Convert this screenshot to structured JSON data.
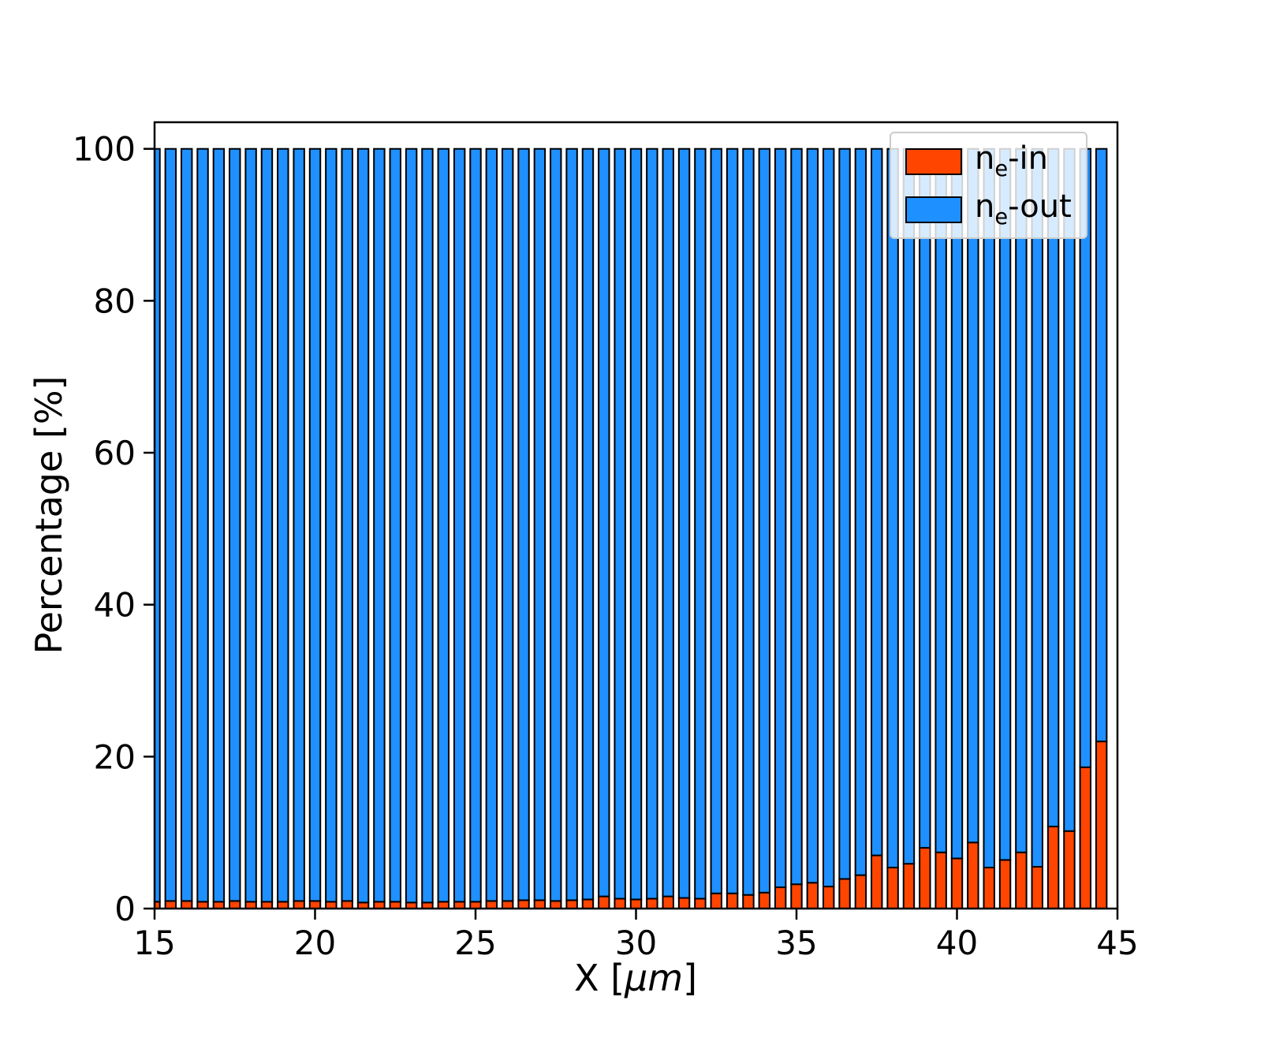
{
  "figure": {
    "background": "#ffffff"
  },
  "axis": {
    "ylabel": "Percentage  [%]",
    "xlabel_prefix": "X  [",
    "xlabel_italic": "μm",
    "xlabel_suffix": "]"
  },
  "legend": {
    "items": [
      {
        "key": "ne_in",
        "color": "#FF4500",
        "prefix": "n",
        "sub": "e",
        "suffix": "-in"
      },
      {
        "key": "ne_out",
        "color": "#1E90FF",
        "prefix": "n",
        "sub": "e",
        "suffix": "-out"
      }
    ]
  },
  "chart_data": {
    "type": "bar",
    "stacked": true,
    "title": "",
    "xlabel": "X [μm]",
    "ylabel": "Percentage [%]",
    "xlim": [
      15,
      45
    ],
    "ylim": [
      0,
      103.5
    ],
    "xticks": [
      15,
      20,
      25,
      30,
      35,
      40,
      45
    ],
    "yticks": [
      0,
      20,
      40,
      60,
      80,
      100
    ],
    "grid": false,
    "legend_position": "upper right",
    "bar_width": 0.33,
    "edge_color": "#000000",
    "x": [
      15.0,
      15.5,
      16.0,
      16.5,
      17.0,
      17.5,
      18.0,
      18.5,
      19.0,
      19.5,
      20.0,
      20.5,
      21.0,
      21.5,
      22.0,
      22.5,
      23.0,
      23.5,
      24.0,
      24.5,
      25.0,
      25.5,
      26.0,
      26.5,
      27.0,
      27.5,
      28.0,
      28.5,
      29.0,
      29.5,
      30.0,
      30.5,
      31.0,
      31.5,
      32.0,
      32.5,
      33.0,
      33.5,
      34.0,
      34.5,
      35.0,
      35.5,
      36.0,
      36.5,
      37.0,
      37.5,
      38.0,
      38.5,
      39.0,
      39.5,
      40.0,
      40.5,
      41.0,
      41.5,
      42.0,
      42.5,
      43.0,
      43.5,
      44.0,
      44.5
    ],
    "series": [
      {
        "name": "n_e-in",
        "color": "#FF4500",
        "values": [
          0.9,
          1.0,
          1.0,
          0.9,
          0.9,
          1.0,
          0.9,
          0.9,
          0.9,
          1.0,
          1.0,
          0.9,
          1.0,
          0.8,
          0.9,
          0.9,
          0.8,
          0.8,
          0.9,
          0.9,
          0.9,
          1.0,
          1.0,
          1.1,
          1.1,
          1.0,
          1.1,
          1.2,
          1.6,
          1.3,
          1.2,
          1.3,
          1.6,
          1.4,
          1.3,
          2.0,
          2.0,
          1.8,
          2.1,
          2.8,
          3.2,
          3.4,
          2.9,
          3.9,
          4.4,
          7.0,
          5.4,
          5.9,
          8.0,
          7.4,
          6.6,
          8.7,
          5.4,
          6.4,
          7.4,
          5.5,
          10.8,
          10.2,
          18.6,
          22.0
        ]
      },
      {
        "name": "n_e-out",
        "color": "#1E90FF",
        "values": [
          99.1,
          99.0,
          99.0,
          99.1,
          99.1,
          99.0,
          99.1,
          99.1,
          99.1,
          99.0,
          99.0,
          99.1,
          99.0,
          99.2,
          99.1,
          99.1,
          99.2,
          99.2,
          99.1,
          99.1,
          99.1,
          99.0,
          99.0,
          98.9,
          98.9,
          99.0,
          98.9,
          98.8,
          98.4,
          98.7,
          98.8,
          98.7,
          98.4,
          98.6,
          98.7,
          98.0,
          98.0,
          98.2,
          97.9,
          97.2,
          96.8,
          96.6,
          97.1,
          96.1,
          95.6,
          93.0,
          94.6,
          94.1,
          92.0,
          92.6,
          93.4,
          91.3,
          94.6,
          93.6,
          92.6,
          94.5,
          89.2,
          89.8,
          81.4,
          78.0
        ]
      }
    ]
  }
}
